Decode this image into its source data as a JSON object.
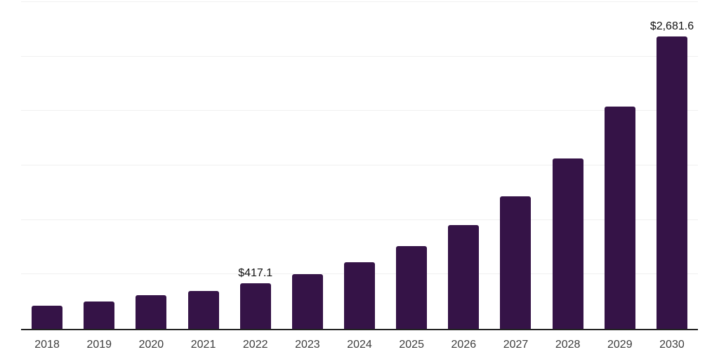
{
  "chart_data": {
    "type": "bar",
    "title": "",
    "xlabel": "",
    "ylabel": "",
    "categories": [
      "2018",
      "2019",
      "2020",
      "2021",
      "2022",
      "2023",
      "2024",
      "2025",
      "2026",
      "2027",
      "2028",
      "2029",
      "2030"
    ],
    "values": [
      212,
      251,
      311,
      346,
      417.1,
      505,
      614,
      760,
      956,
      1218,
      1565,
      2042,
      2681.6
    ],
    "point_labels": [
      {
        "category": "2022",
        "text": "$417.1"
      },
      {
        "category": "2030",
        "text": "$2,681.6"
      }
    ],
    "ylim": [
      0,
      3000
    ],
    "gridlines": [
      500,
      1000,
      1500,
      2000,
      2500,
      3000
    ],
    "grid": "horizontal-only",
    "legend": "none"
  },
  "colors": {
    "bar": "#351347",
    "gridline": "#f0f0f0",
    "axis_line": "#222222",
    "tick_label": "#3d3d3d",
    "value_label": "#111111",
    "background": "#ffffff"
  }
}
